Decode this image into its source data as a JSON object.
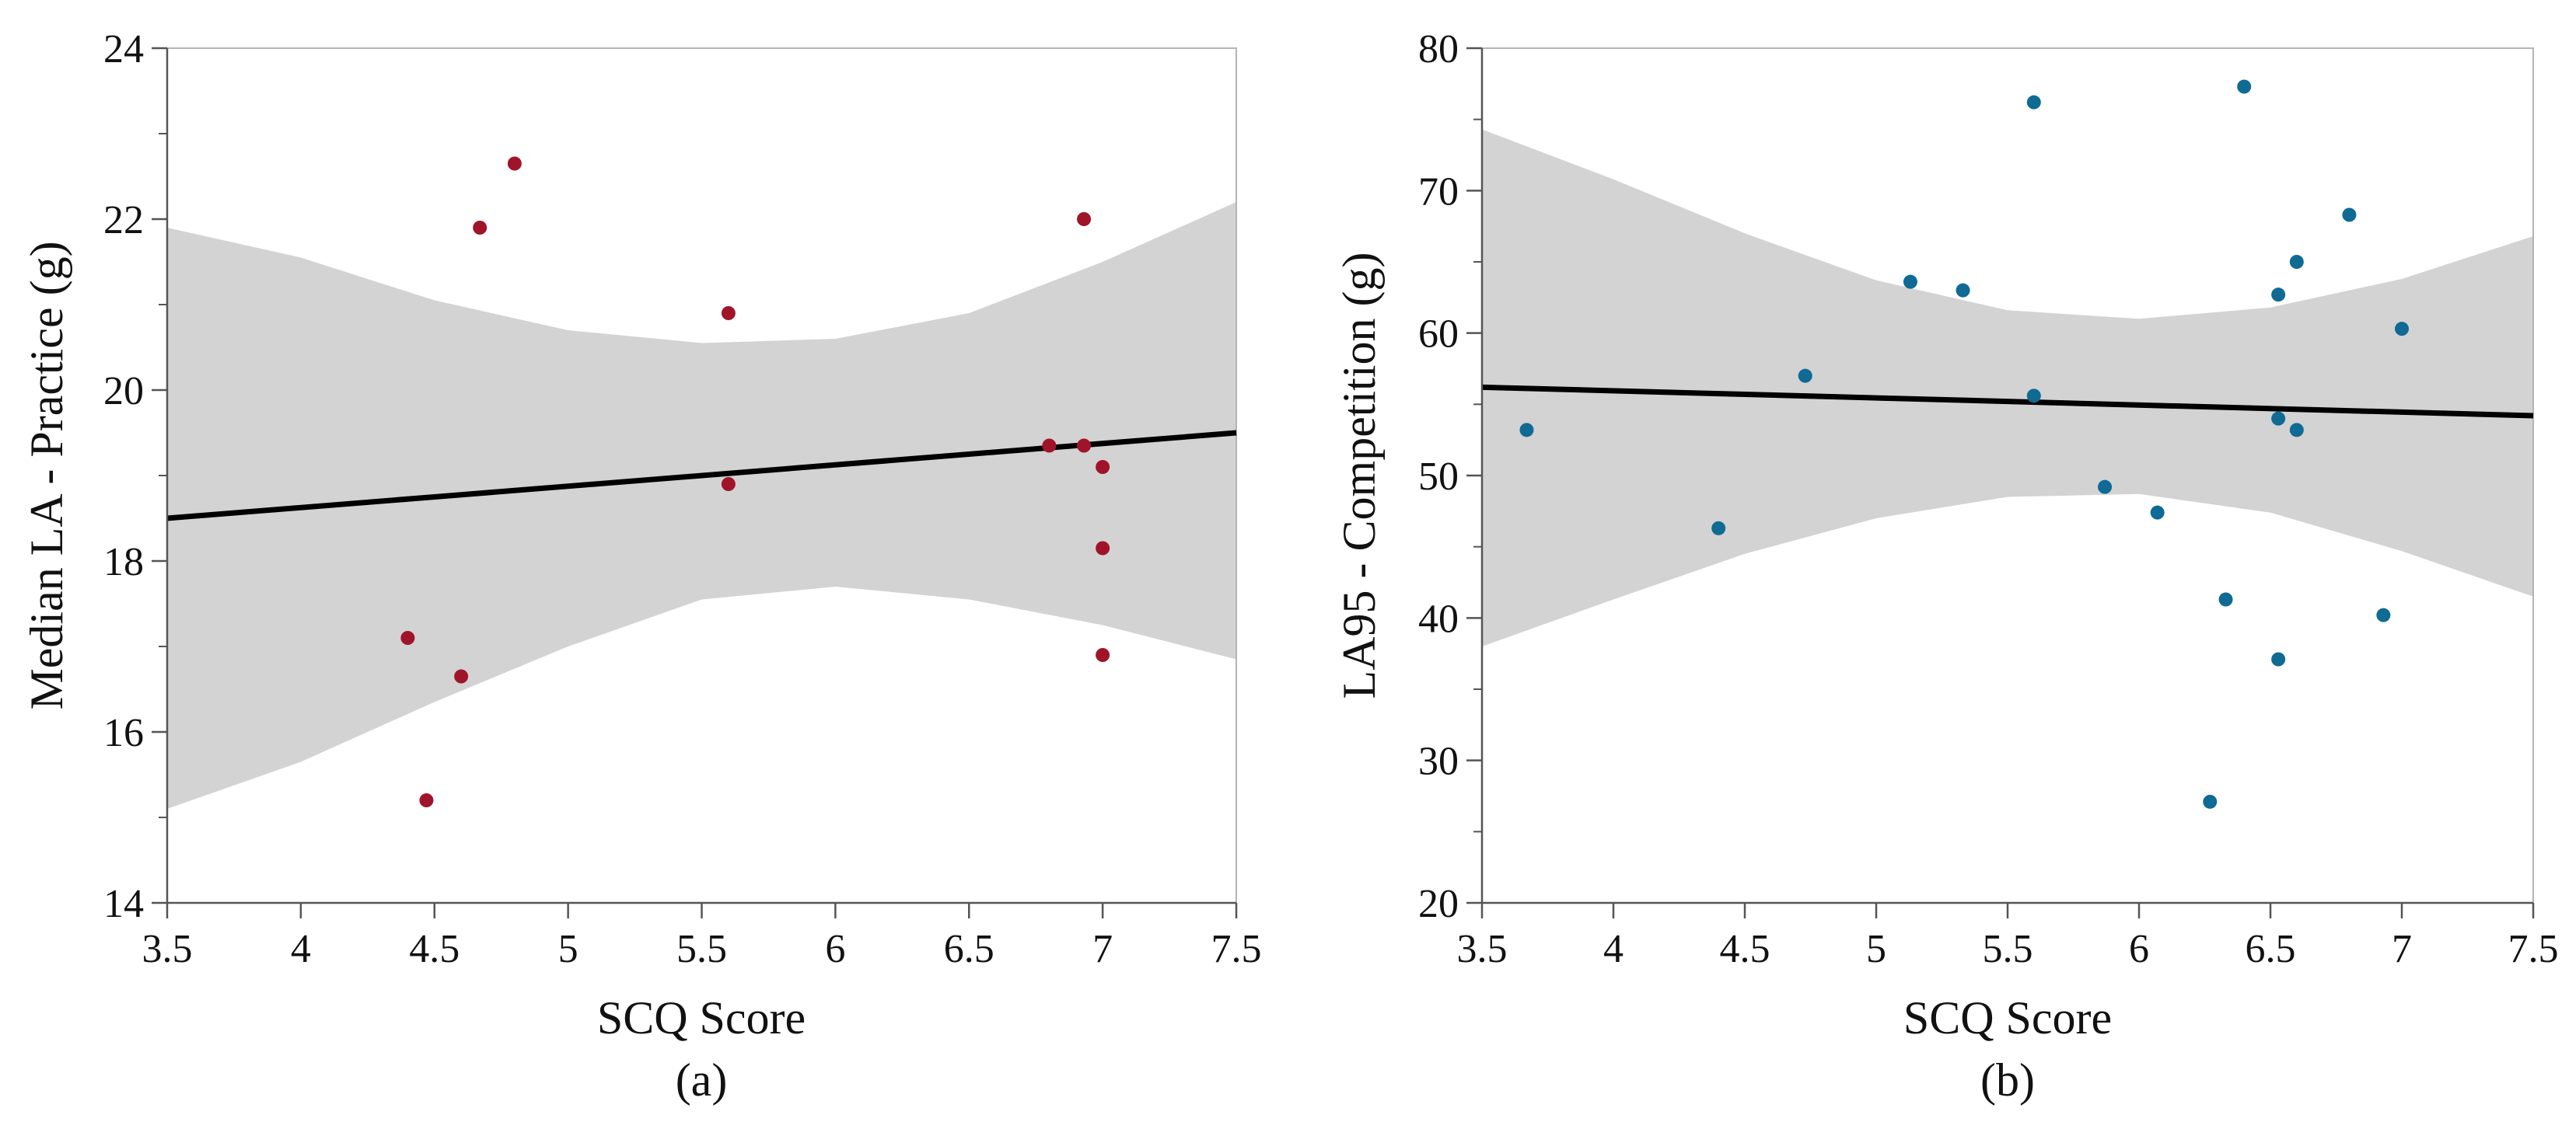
{
  "chart_data": [
    {
      "type": "scatter",
      "panel_label": "(a)",
      "xlabel": "SCQ Score",
      "ylabel": "Median LA - Practice (g)",
      "xlim": [
        3.5,
        7.5
      ],
      "ylim": [
        14,
        24
      ],
      "xticks": [
        3.5,
        4,
        4.5,
        5,
        5.5,
        6,
        6.5,
        7,
        7.5
      ],
      "xtick_labels": [
        "3.5",
        "4",
        "4.5",
        "5",
        "5.5",
        "6",
        "6.5",
        "7",
        "7.5"
      ],
      "yticks": [
        14,
        16,
        18,
        20,
        22,
        24
      ],
      "ytick_labels": [
        "14",
        "16",
        "18",
        "20",
        "22",
        "24"
      ],
      "point_color": "#a0142a",
      "points": [
        {
          "x": 4.4,
          "y": 17.1
        },
        {
          "x": 4.47,
          "y": 15.2
        },
        {
          "x": 4.6,
          "y": 16.65
        },
        {
          "x": 4.67,
          "y": 21.9
        },
        {
          "x": 4.8,
          "y": 22.65
        },
        {
          "x": 5.6,
          "y": 20.9
        },
        {
          "x": 5.6,
          "y": 18.9
        },
        {
          "x": 6.8,
          "y": 19.35
        },
        {
          "x": 6.93,
          "y": 19.35
        },
        {
          "x": 6.93,
          "y": 22.0
        },
        {
          "x": 7.0,
          "y": 19.1
        },
        {
          "x": 7.0,
          "y": 18.15
        },
        {
          "x": 7.0,
          "y": 16.9
        }
      ],
      "fit_line": {
        "x": [
          3.5,
          7.5
        ],
        "y": [
          18.5,
          19.5
        ]
      },
      "confidence_band": {
        "x": [
          3.5,
          4.0,
          4.5,
          5.0,
          5.5,
          6.0,
          6.5,
          7.0,
          7.5
        ],
        "upper": [
          21.9,
          21.55,
          21.05,
          20.7,
          20.55,
          20.6,
          20.9,
          21.5,
          22.2
        ],
        "lower": [
          15.1,
          15.65,
          16.35,
          17.0,
          17.55,
          17.7,
          17.55,
          17.25,
          16.85
        ]
      }
    },
    {
      "type": "scatter",
      "panel_label": "(b)",
      "xlabel": "SCQ Score",
      "ylabel": "LA95 - Competition (g)",
      "xlim": [
        3.5,
        7.5
      ],
      "ylim": [
        20,
        80
      ],
      "xticks": [
        3.5,
        4,
        4.5,
        5,
        5.5,
        6,
        6.5,
        7,
        7.5
      ],
      "xtick_labels": [
        "3.5",
        "4",
        "4.5",
        "5",
        "5.5",
        "6",
        "6.5",
        "7",
        "7.5"
      ],
      "yticks": [
        20,
        30,
        40,
        50,
        60,
        70,
        80
      ],
      "ytick_labels": [
        "20",
        "30",
        "40",
        "50",
        "60",
        "70",
        "80"
      ],
      "point_color": "#0f6a94",
      "points": [
        {
          "x": 3.67,
          "y": 53.2
        },
        {
          "x": 4.4,
          "y": 46.3
        },
        {
          "x": 4.73,
          "y": 57.0
        },
        {
          "x": 5.13,
          "y": 63.6
        },
        {
          "x": 5.33,
          "y": 63.0
        },
        {
          "x": 5.6,
          "y": 76.2
        },
        {
          "x": 5.6,
          "y": 55.6
        },
        {
          "x": 5.87,
          "y": 49.2
        },
        {
          "x": 6.07,
          "y": 47.4
        },
        {
          "x": 6.27,
          "y": 27.1
        },
        {
          "x": 6.33,
          "y": 41.3
        },
        {
          "x": 6.4,
          "y": 77.3
        },
        {
          "x": 6.53,
          "y": 62.7
        },
        {
          "x": 6.53,
          "y": 54.0
        },
        {
          "x": 6.53,
          "y": 37.1
        },
        {
          "x": 6.6,
          "y": 65.0
        },
        {
          "x": 6.6,
          "y": 53.2
        },
        {
          "x": 6.8,
          "y": 68.3
        },
        {
          "x": 6.93,
          "y": 40.2
        },
        {
          "x": 7.0,
          "y": 60.3
        }
      ],
      "fit_line": {
        "x": [
          3.5,
          7.5
        ],
        "y": [
          56.2,
          54.2
        ]
      },
      "confidence_band": {
        "x": [
          3.5,
          4.0,
          4.5,
          5.0,
          5.5,
          6.0,
          6.5,
          7.0,
          7.5
        ],
        "upper": [
          74.3,
          70.8,
          67.0,
          63.7,
          61.6,
          61.0,
          61.8,
          63.8,
          66.8
        ],
        "lower": [
          38.0,
          41.3,
          44.5,
          47.0,
          48.5,
          48.7,
          47.4,
          44.7,
          41.5
        ]
      }
    }
  ]
}
